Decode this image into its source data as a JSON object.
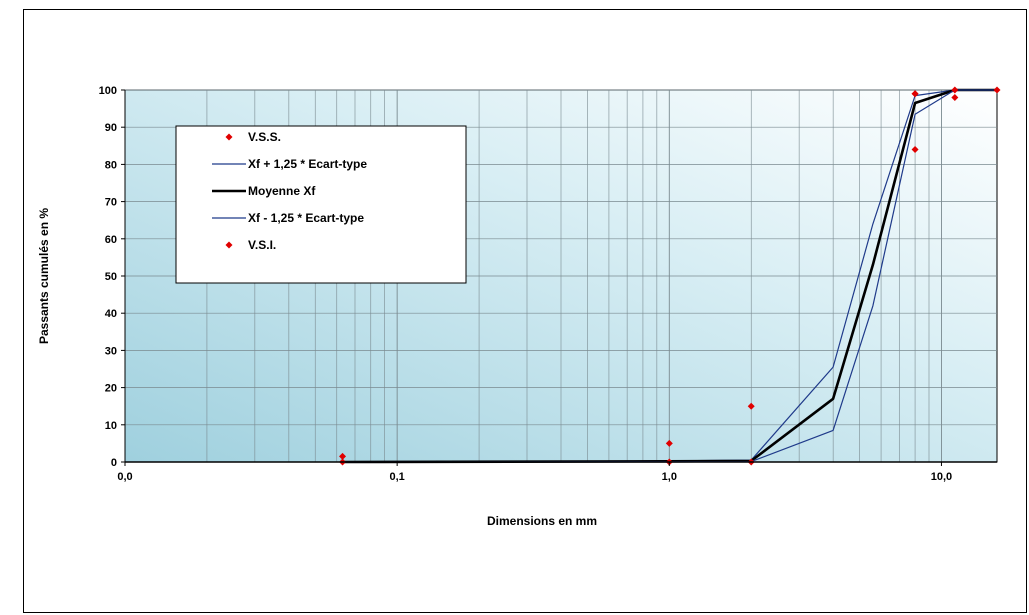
{
  "chart_data": {
    "type": "line",
    "xscale": "log",
    "xlabel": "Dimensions en mm",
    "ylabel": "Passants cumulés en %",
    "xlim": [
      0.01,
      16
    ],
    "ylim": [
      0,
      100
    ],
    "x_tick_labels": [
      {
        "value": 0.01,
        "label": "0,0"
      },
      {
        "value": 0.1,
        "label": "0,1"
      },
      {
        "value": 1,
        "label": "1,0"
      },
      {
        "value": 10,
        "label": "10,0"
      }
    ],
    "y_ticks": [
      0,
      10,
      20,
      30,
      40,
      50,
      60,
      70,
      80,
      90,
      100
    ],
    "grid": true,
    "legend_position": "top-left",
    "series": [
      {
        "name": "V.S.S.",
        "kind": "scatter",
        "color": "#e00000",
        "points": [
          [
            0.063,
            1.5
          ],
          [
            1,
            5
          ],
          [
            2,
            15
          ],
          [
            8,
            84
          ],
          [
            8,
            99
          ],
          [
            11.2,
            100
          ],
          [
            16,
            100
          ]
        ]
      },
      {
        "name": "Xf + 1,25 * Ecart-type",
        "kind": "line",
        "color": "#1f3a8a",
        "points": [
          [
            0.063,
            0
          ],
          [
            1,
            0.3
          ],
          [
            2,
            0.5
          ],
          [
            4,
            25.5
          ],
          [
            5.6,
            64
          ],
          [
            8,
            98.5
          ],
          [
            11.2,
            100
          ],
          [
            16,
            100
          ]
        ]
      },
      {
        "name": "Moyenne Xf",
        "kind": "line",
        "color": "#000000",
        "points": [
          [
            0.063,
            0
          ],
          [
            1,
            0.2
          ],
          [
            2,
            0.3
          ],
          [
            4,
            17
          ],
          [
            5.6,
            53
          ],
          [
            8,
            96.5
          ],
          [
            11.2,
            100
          ],
          [
            16,
            100
          ]
        ]
      },
      {
        "name": "Xf - 1,25 * Ecart-type",
        "kind": "line",
        "color": "#1f3a8a",
        "points": [
          [
            0.063,
            0
          ],
          [
            1,
            0.1
          ],
          [
            2,
            0.1
          ],
          [
            4,
            8.5
          ],
          [
            5.6,
            42
          ],
          [
            8,
            93.5
          ],
          [
            11.2,
            100
          ],
          [
            16,
            100
          ]
        ]
      },
      {
        "name": "V.S.I.",
        "kind": "scatter",
        "color": "#e00000",
        "points": [
          [
            0.063,
            0
          ],
          [
            1,
            0
          ],
          [
            2,
            0
          ],
          [
            8,
            99
          ],
          [
            11.2,
            98
          ]
        ]
      }
    ]
  }
}
